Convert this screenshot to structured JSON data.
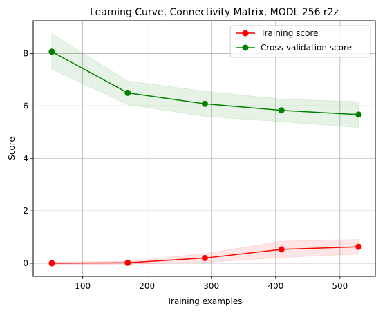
{
  "chart_data": {
    "type": "line",
    "title": "Learning Curve, Connectivity Matrix, MODL 256 r2z",
    "xlabel": "Training examples",
    "ylabel": "Score",
    "xlim": [
      23,
      555
    ],
    "ylim": [
      -0.5,
      9.25
    ],
    "xticks": [
      100,
      200,
      300,
      400,
      500
    ],
    "yticks": [
      0,
      2,
      4,
      6,
      8
    ],
    "grid": true,
    "legend_position": "top-right",
    "x": [
      52,
      170,
      290,
      409,
      529
    ],
    "series": [
      {
        "name": "Training score",
        "color": "#ff0000",
        "values": [
          0.0,
          0.02,
          0.2,
          0.53,
          0.63
        ],
        "band_lower": [
          -0.05,
          -0.03,
          0.03,
          0.22,
          0.35
        ],
        "band_upper": [
          0.05,
          0.07,
          0.37,
          0.84,
          0.91
        ]
      },
      {
        "name": "Cross-validation score",
        "color": "#008000",
        "values": [
          8.07,
          6.5,
          6.08,
          5.83,
          5.67
        ],
        "band_lower": [
          7.4,
          6.05,
          5.6,
          5.4,
          5.18
        ],
        "band_upper": [
          8.75,
          6.95,
          6.56,
          6.26,
          6.16
        ]
      }
    ]
  }
}
